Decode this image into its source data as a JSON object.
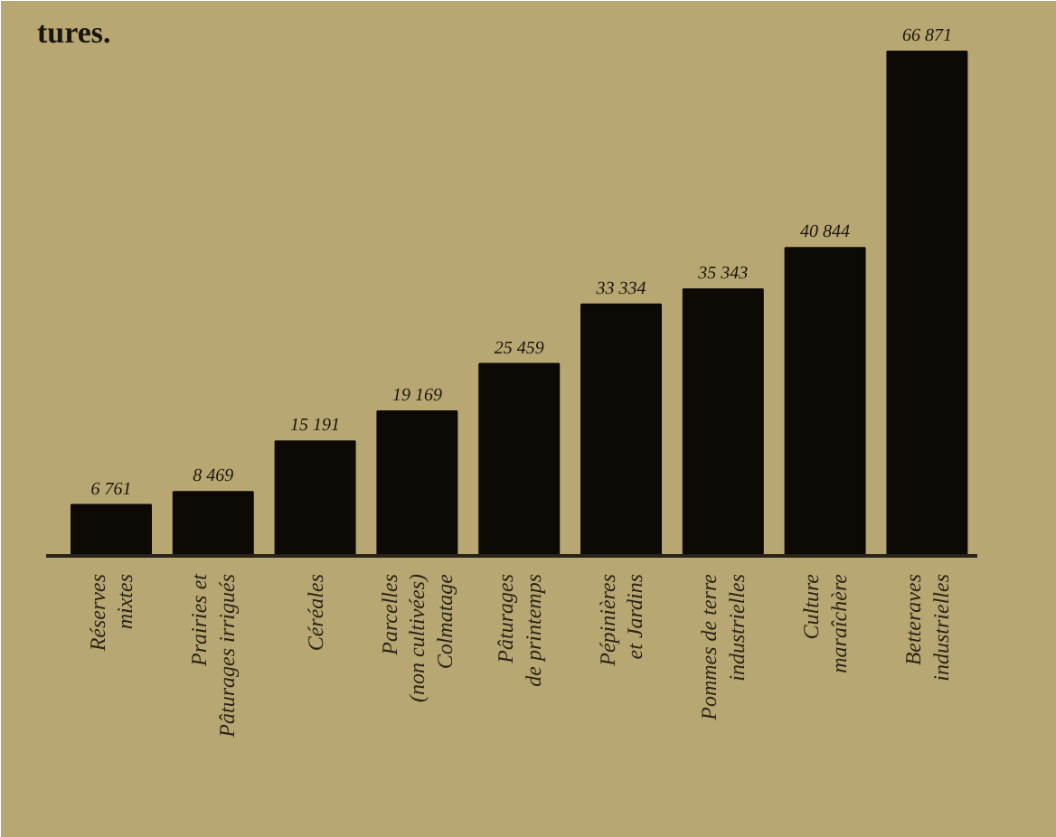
{
  "chart_data": {
    "type": "bar",
    "annotations": [
      "tures."
    ],
    "categories": [
      "Réserves\nmixtes",
      "Prairies et\nPâturages irrigués",
      "Céréales",
      "Parcelles\n(non cultivées)\nColmatage",
      "Pâturages\nde printemps",
      "Pépinières\net Jardins",
      "Pommes de terre\nindustrielles",
      "Culture\nmaraîchère",
      "Betteraves\nindustrielles"
    ],
    "values": [
      6761,
      8469,
      15191,
      19169,
      25459,
      33334,
      35343,
      40844,
      66871
    ],
    "value_labels": [
      "6 761",
      "8 469",
      "15 191",
      "19 169",
      "25 459",
      "33 334",
      "35 343",
      "40 844",
      "66 871"
    ],
    "color": "#0d0a06"
  }
}
